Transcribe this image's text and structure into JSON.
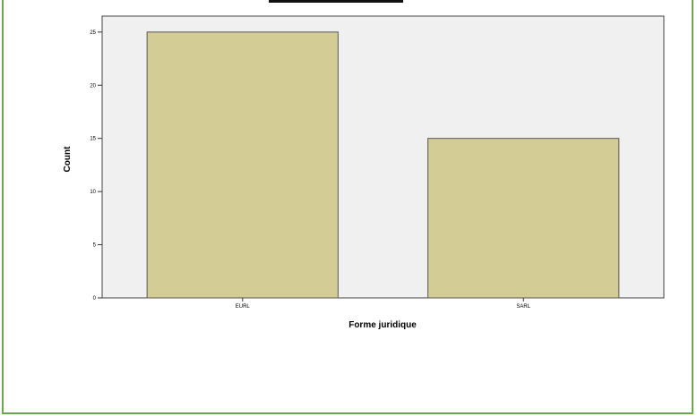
{
  "chart_data": {
    "type": "bar",
    "categories": [
      "EURL",
      "SARL"
    ],
    "values": [
      25,
      15
    ],
    "xlabel": "Forme juridique",
    "ylabel": "Count",
    "yticks": [
      0,
      5,
      10,
      15,
      20,
      25
    ],
    "ylim": [
      0,
      26.5
    ],
    "grid": false,
    "colors": {
      "bar": "#d3cd95",
      "plot_background": "#f0f0f0",
      "frame": "#6aa84f"
    }
  }
}
